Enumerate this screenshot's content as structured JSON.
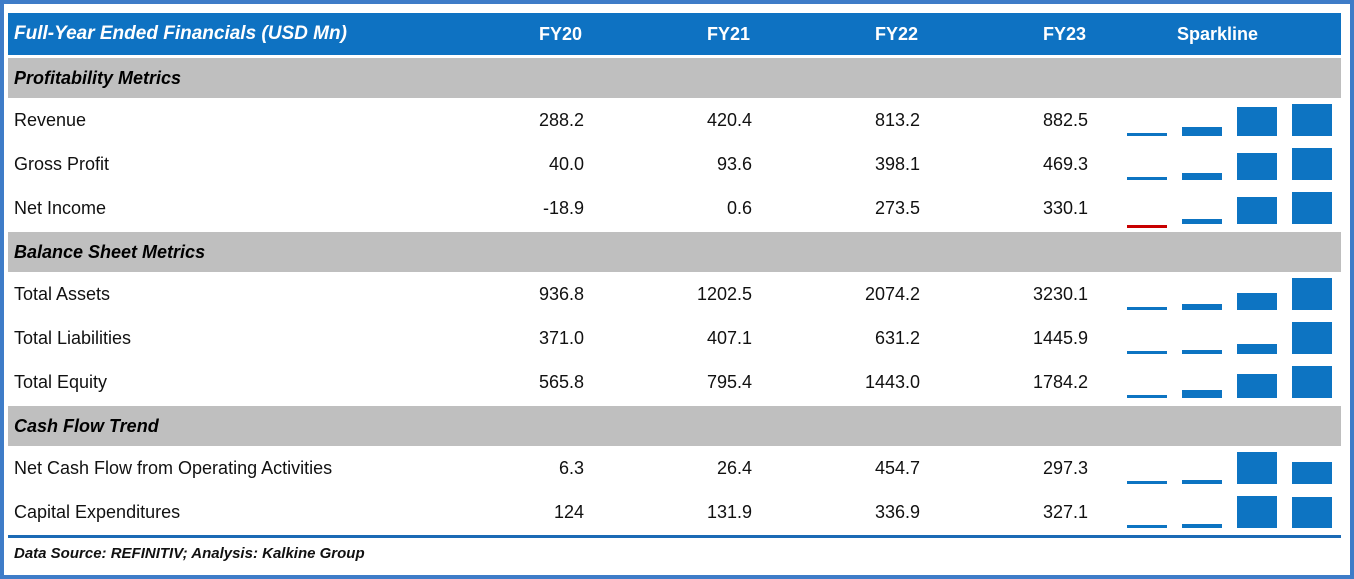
{
  "table": {
    "title": "Full-Year Ended Financials (USD Mn)",
    "year_headers": [
      "FY20",
      "FY21",
      "FY22",
      "FY23"
    ],
    "sparkline_header": "Sparkline",
    "sections": [
      {
        "label": "Profitability Metrics",
        "rows": [
          {
            "label": "Revenue",
            "values": [
              "288.2",
              "420.4",
              "813.2",
              "882.5"
            ]
          },
          {
            "label": "Gross Profit",
            "values": [
              "40.0",
              "93.6",
              "398.1",
              "469.3"
            ]
          },
          {
            "label": "Net Income",
            "values": [
              "-18.9",
              "0.6",
              "273.5",
              "330.1"
            ]
          }
        ]
      },
      {
        "label": "Balance Sheet Metrics",
        "rows": [
          {
            "label": "Total Assets",
            "values": [
              "936.8",
              "1202.5",
              "2074.2",
              "3230.1"
            ]
          },
          {
            "label": "Total Liabilities",
            "values": [
              "371.0",
              "407.1",
              "631.2",
              "1445.9"
            ]
          },
          {
            "label": "Total Equity",
            "values": [
              "565.8",
              "795.4",
              "1443.0",
              "1784.2"
            ]
          }
        ]
      },
      {
        "label": "Cash Flow Trend",
        "rows": [
          {
            "label": "Net Cash Flow from Operating Activities",
            "values": [
              "6.3",
              "26.4",
              "454.7",
              "297.3"
            ]
          },
          {
            "label": "Capital Expenditures",
            "values": [
              "124",
              "131.9",
              "336.9",
              "327.1"
            ]
          }
        ]
      }
    ],
    "footer": "Data Source: REFINITIV; Analysis: Kalkine Group"
  },
  "chart_data": {
    "type": "table",
    "title": "Full-Year Ended Financials (USD Mn)",
    "columns": [
      "FY20",
      "FY21",
      "FY22",
      "FY23"
    ],
    "sections": [
      {
        "name": "Profitability Metrics",
        "rows": [
          {
            "metric": "Revenue",
            "values": [
              288.2,
              420.4,
              813.2,
              882.5
            ]
          },
          {
            "metric": "Gross Profit",
            "values": [
              40.0,
              93.6,
              398.1,
              469.3
            ]
          },
          {
            "metric": "Net Income",
            "values": [
              -18.9,
              0.6,
              273.5,
              330.1
            ]
          }
        ]
      },
      {
        "name": "Balance Sheet Metrics",
        "rows": [
          {
            "metric": "Total Assets",
            "values": [
              936.8,
              1202.5,
              2074.2,
              3230.1
            ]
          },
          {
            "metric": "Total Liabilities",
            "values": [
              371.0,
              407.1,
              631.2,
              1445.9
            ]
          },
          {
            "metric": "Total Equity",
            "values": [
              565.8,
              795.4,
              1443.0,
              1784.2
            ]
          }
        ]
      },
      {
        "name": "Cash Flow Trend",
        "rows": [
          {
            "metric": "Net Cash Flow from Operating Activities",
            "values": [
              6.3,
              26.4,
              454.7,
              297.3
            ]
          },
          {
            "metric": "Capital Expenditures",
            "values": [
              124,
              131.9,
              336.9,
              327.1
            ]
          }
        ]
      }
    ],
    "sparkline": {
      "type": "bar",
      "scaling": "per-row min to max (auto axis)",
      "positive_color": "#0d74c2",
      "negative_color": "#c80000",
      "negative_points": [
        {
          "metric": "Net Income",
          "column": "FY20",
          "value": -18.9
        }
      ]
    },
    "source_note": "Data Source: REFINITIV; Analysis: Kalkine Group"
  },
  "colors": {
    "header_bg": "#0e72c2",
    "section_bg": "#bfbfbf",
    "spark_positive": "#0d74c2",
    "spark_negative": "#c80000",
    "frame_border": "#3e7cc8",
    "separator_line": "#1b6ab5"
  }
}
